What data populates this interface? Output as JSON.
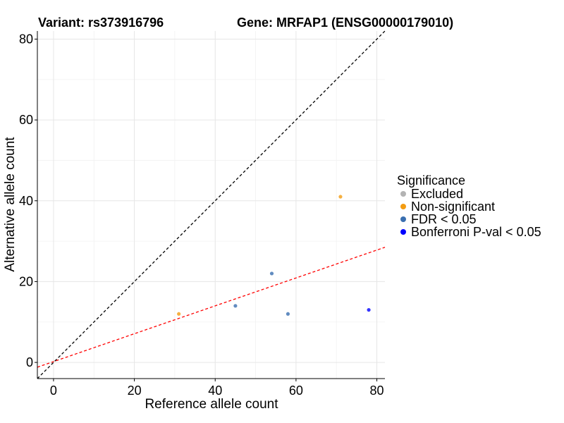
{
  "header": {
    "variant_title": "Variant: rs373916796",
    "gene_title": "Gene: MRFAP1 (ENSG00000179010)"
  },
  "chart_data": {
    "type": "scatter",
    "xlabel": "Reference allele count",
    "ylabel": "Alternative allele count",
    "xlim": [
      -4,
      82
    ],
    "ylim": [
      -4,
      82
    ],
    "x_ticks": [
      0,
      20,
      40,
      60,
      80
    ],
    "y_ticks": [
      0,
      20,
      40,
      60,
      80
    ],
    "grid": true,
    "legend": {
      "title": "Significance",
      "placement": "right",
      "entries": [
        {
          "label": "Excluded",
          "color": "#b3b3b3"
        },
        {
          "label": "Non-significant",
          "color": "#f39c12"
        },
        {
          "label": "FDR < 0.05",
          "color": "#3a6fb0"
        },
        {
          "label": "Bonferroni P-val < 0.05",
          "color": "#0000ff"
        }
      ]
    },
    "points": [
      {
        "x": 31,
        "y": 12,
        "group": "Non-significant"
      },
      {
        "x": 71,
        "y": 41,
        "group": "Non-significant"
      },
      {
        "x": 45,
        "y": 14,
        "group": "FDR < 0.05"
      },
      {
        "x": 54,
        "y": 22,
        "group": "FDR < 0.05"
      },
      {
        "x": 58,
        "y": 12,
        "group": "FDR < 0.05"
      },
      {
        "x": 78,
        "y": 13,
        "group": "Bonferroni P-val < 0.05"
      }
    ],
    "reference_lines": [
      {
        "name": "identity",
        "slope": 1.0,
        "intercept": 0,
        "color": "#000000",
        "style": "dashed"
      },
      {
        "name": "fit",
        "slope": 0.345,
        "intercept": 0.2,
        "color": "#ff0000",
        "style": "dashed"
      }
    ]
  }
}
